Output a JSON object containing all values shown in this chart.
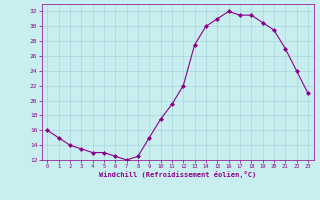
{
  "x": [
    0,
    1,
    2,
    3,
    4,
    5,
    6,
    7,
    8,
    9,
    10,
    11,
    12,
    13,
    14,
    15,
    16,
    17,
    18,
    19,
    20,
    21,
    22,
    23
  ],
  "y": [
    16,
    15,
    14,
    13.5,
    13,
    13,
    12.5,
    12,
    12.5,
    15,
    17.5,
    19.5,
    22,
    27.5,
    30,
    31,
    32,
    31.5,
    31.5,
    30.5,
    29.5,
    27,
    24,
    21
  ],
  "line_color": "#8B008B",
  "marker_color": "#8B008B",
  "bg_color": "#C8EEF0",
  "grid_color": "#A8D8DC",
  "xlabel": "Windchill (Refroidissement éolien,°C)",
  "xlabel_color": "#8B008B",
  "tick_color": "#8B008B",
  "ylim": [
    12,
    33
  ],
  "yticks": [
    12,
    14,
    16,
    18,
    20,
    22,
    24,
    26,
    28,
    30,
    32
  ],
  "xlim": [
    -0.5,
    23.5
  ],
  "xticks": [
    0,
    1,
    2,
    3,
    4,
    5,
    6,
    7,
    8,
    9,
    10,
    11,
    12,
    13,
    14,
    15,
    16,
    17,
    18,
    19,
    20,
    21,
    22,
    23
  ]
}
